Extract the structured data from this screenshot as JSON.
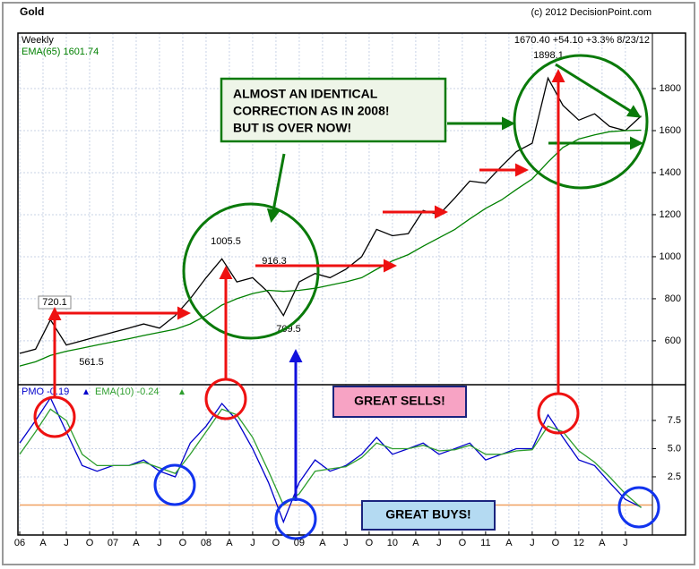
{
  "chart_data": [
    {
      "type": "line",
      "title": "Gold",
      "subtitle": "Weekly",
      "source": "(c) 2012 DecisionPoint.com",
      "quote": "1670.40 +54.10 +3.3% 8/23/12",
      "x": [
        2006,
        2006.17,
        2006.33,
        2006.5,
        2006.67,
        2006.83,
        2007,
        2007.17,
        2007.33,
        2007.5,
        2007.67,
        2007.83,
        2008,
        2008.17,
        2008.33,
        2008.5,
        2008.67,
        2008.83,
        2009,
        2009.17,
        2009.33,
        2009.5,
        2009.67,
        2009.83,
        2010,
        2010.17,
        2010.33,
        2010.5,
        2010.67,
        2010.83,
        2011,
        2011.17,
        2011.33,
        2011.5,
        2011.67,
        2011.83,
        2012,
        2012.17,
        2012.33,
        2012.5,
        2012.67
      ],
      "series": [
        {
          "color": "#000000",
          "values": [
            540,
            560,
            700,
            580,
            600,
            620,
            640,
            660,
            680,
            660,
            720,
            800,
            900,
            990,
            880,
            900,
            830,
            720,
            880,
            920,
            900,
            940,
            1000,
            1130,
            1100,
            1110,
            1220,
            1200,
            1280,
            1360,
            1350,
            1430,
            1500,
            1540,
            1850,
            1720,
            1650,
            1680,
            1620,
            1600,
            1670
          ]
        },
        {
          "name": "EMA(65) 1601.74",
          "color": "#008000",
          "values": [
            480,
            500,
            530,
            550,
            565,
            580,
            595,
            610,
            625,
            640,
            655,
            680,
            720,
            770,
            800,
            825,
            840,
            835,
            840,
            850,
            865,
            880,
            900,
            940,
            980,
            1010,
            1050,
            1090,
            1130,
            1180,
            1230,
            1270,
            1320,
            1370,
            1450,
            1520,
            1560,
            1580,
            1595,
            1600,
            1602
          ]
        }
      ],
      "peak_labels": [
        720.1,
        561.5,
        1005.5,
        916.3,
        709.5,
        1898.1
      ],
      "annotations": [
        "ALMOST AN IDENTICAL",
        "CORRECTION AS IN 2008!",
        "BUT IS OVER NOW!"
      ],
      "xlim": [
        2006,
        2012.79
      ],
      "ylim": [
        391,
        2064
      ],
      "yticks": [
        600,
        800,
        1000,
        1200,
        1400,
        1600,
        1800
      ],
      "grid": true
    },
    {
      "type": "line",
      "x": [
        2006,
        2006.17,
        2006.33,
        2006.5,
        2006.67,
        2006.83,
        2007,
        2007.17,
        2007.33,
        2007.5,
        2007.67,
        2007.83,
        2008,
        2008.17,
        2008.33,
        2008.5,
        2008.67,
        2008.83,
        2009,
        2009.17,
        2009.33,
        2009.5,
        2009.67,
        2009.83,
        2010,
        2010.17,
        2010.33,
        2010.5,
        2010.67,
        2010.83,
        2011,
        2011.17,
        2011.33,
        2011.5,
        2011.67,
        2011.83,
        2012,
        2012.17,
        2012.33,
        2012.5,
        2012.67
      ],
      "series": [
        {
          "name": "PMO -0.19",
          "color": "#0000cc",
          "values": [
            5.5,
            7.5,
            9.5,
            6.5,
            3.5,
            3.0,
            3.5,
            3.5,
            4.0,
            3.0,
            2.5,
            5.5,
            7.0,
            9.0,
            7.5,
            5.0,
            2.0,
            -1.5,
            2.0,
            4.0,
            3.0,
            3.5,
            4.5,
            6.0,
            4.5,
            5.0,
            5.5,
            4.5,
            5.0,
            5.5,
            4.0,
            4.5,
            5.0,
            5.0,
            8.0,
            6.0,
            4.0,
            3.5,
            2.0,
            0.5,
            -0.19
          ]
        },
        {
          "name": "EMA(10) -0.24",
          "color": "#2e9e2e",
          "values": [
            4.5,
            6.5,
            8.5,
            7.5,
            4.5,
            3.5,
            3.5,
            3.5,
            3.8,
            3.3,
            2.8,
            4.5,
            6.5,
            8.5,
            8.0,
            6.0,
            3.0,
            0.0,
            1.0,
            3.0,
            3.2,
            3.4,
            4.2,
            5.5,
            5.0,
            5.0,
            5.3,
            4.8,
            4.9,
            5.3,
            4.5,
            4.5,
            4.8,
            4.9,
            7.0,
            6.5,
            4.8,
            3.8,
            2.5,
            1.0,
            -0.24
          ]
        }
      ],
      "reference_line": 0,
      "annotations": [
        "GREAT SELLS!",
        "GREAT BUYS!"
      ],
      "xlim": [
        2006,
        2012.79
      ],
      "ylim": [
        -2.66,
        10.67
      ],
      "yticks": [
        2.5,
        {
          "value": 5,
          "label": "5.0"
        },
        7.5
      ],
      "xticks": [
        {
          "value": 2006,
          "label": "06"
        },
        {
          "value": 2006.25,
          "label": "A"
        },
        {
          "value": 2006.5,
          "label": "J"
        },
        {
          "value": 2006.75,
          "label": "O"
        },
        {
          "value": 2007,
          "label": "07"
        },
        {
          "value": 2007.25,
          "label": "A"
        },
        {
          "value": 2007.5,
          "label": "J"
        },
        {
          "value": 2007.75,
          "label": "O"
        },
        {
          "value": 2008,
          "label": "08"
        },
        {
          "value": 2008.25,
          "label": "A"
        },
        {
          "value": 2008.5,
          "label": "J"
        },
        {
          "value": 2008.75,
          "label": "O"
        },
        {
          "value": 2009,
          "label": "09"
        },
        {
          "value": 2009.25,
          "label": "A"
        },
        {
          "value": 2009.5,
          "label": "J"
        },
        {
          "value": 2009.75,
          "label": "O"
        },
        {
          "value": 2010,
          "label": "10"
        },
        {
          "value": 2010.25,
          "label": "A"
        },
        {
          "value": 2010.5,
          "label": "J"
        },
        {
          "value": 2010.75,
          "label": "O"
        },
        {
          "value": 2011,
          "label": "11"
        },
        {
          "value": 2011.25,
          "label": "A"
        },
        {
          "value": 2011.5,
          "label": "J"
        },
        {
          "value": 2011.75,
          "label": "O"
        },
        {
          "value": 2012,
          "label": "12"
        },
        {
          "value": 2012.25,
          "label": "A"
        },
        {
          "value": 2012.5,
          "label": "J"
        }
      ],
      "grid": true
    }
  ]
}
